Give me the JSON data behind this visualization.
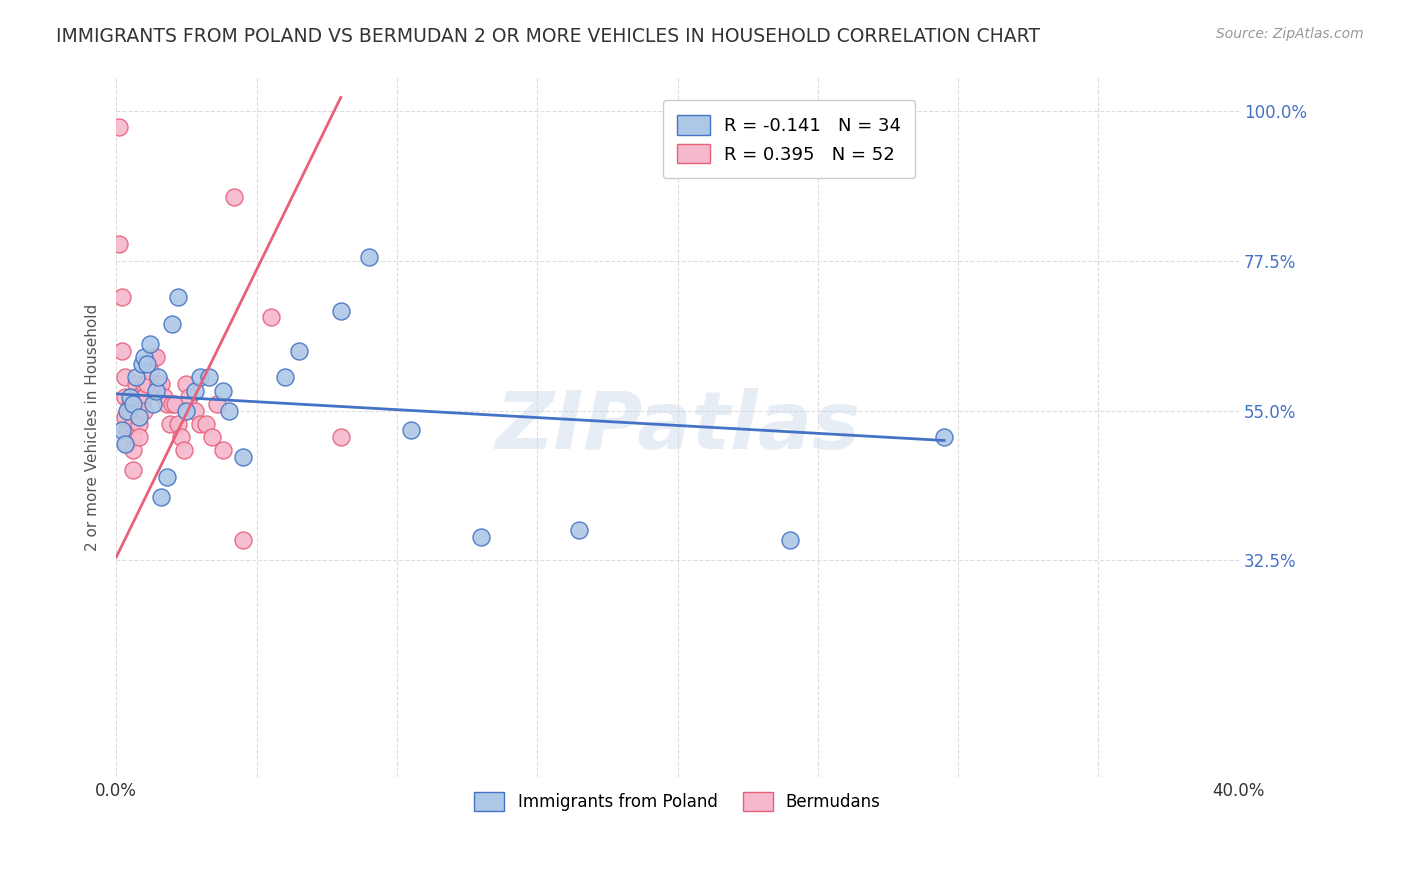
{
  "title": "IMMIGRANTS FROM POLAND VS BERMUDAN 2 OR MORE VEHICLES IN HOUSEHOLD CORRELATION CHART",
  "source": "Source: ZipAtlas.com",
  "ylabel": "2 or more Vehicles in Household",
  "xlim": [
    0.0,
    0.4
  ],
  "ylim": [
    0.0,
    1.05
  ],
  "xtick_positions": [
    0.0,
    0.05,
    0.1,
    0.15,
    0.2,
    0.25,
    0.3,
    0.35,
    0.4
  ],
  "xticklabels_show": {
    "0.0": "0.0%",
    "0.40": "40.0%"
  },
  "ytick_positions": [
    0.0,
    0.325,
    0.55,
    0.775,
    1.0
  ],
  "yticklabels": [
    "",
    "32.5%",
    "55.0%",
    "77.5%",
    "100.0%"
  ],
  "poland_color": "#adc8e6",
  "bermuda_color": "#f5b8cc",
  "poland_line_color": "#4472c4",
  "bermuda_line_color": "#e8607a",
  "watermark": "ZIPatlas",
  "legend_r_poland": "R = -0.141",
  "legend_n_poland": "N = 34",
  "legend_r_bermuda": "R = 0.395",
  "legend_n_bermuda": "N = 52",
  "poland_scatter_x": [
    0.002,
    0.003,
    0.004,
    0.005,
    0.006,
    0.007,
    0.008,
    0.009,
    0.01,
    0.011,
    0.012,
    0.013,
    0.014,
    0.015,
    0.016,
    0.018,
    0.02,
    0.022,
    0.025,
    0.028,
    0.03,
    0.033,
    0.038,
    0.04,
    0.045,
    0.06,
    0.065,
    0.08,
    0.09,
    0.105,
    0.13,
    0.165,
    0.24,
    0.295
  ],
  "poland_scatter_y": [
    0.52,
    0.5,
    0.55,
    0.57,
    0.56,
    0.6,
    0.54,
    0.62,
    0.63,
    0.62,
    0.65,
    0.56,
    0.58,
    0.6,
    0.42,
    0.45,
    0.68,
    0.72,
    0.55,
    0.58,
    0.6,
    0.6,
    0.58,
    0.55,
    0.48,
    0.6,
    0.64,
    0.7,
    0.78,
    0.52,
    0.36,
    0.37,
    0.355,
    0.51
  ],
  "bermuda_scatter_x": [
    0.001,
    0.001,
    0.002,
    0.002,
    0.003,
    0.003,
    0.003,
    0.004,
    0.004,
    0.005,
    0.005,
    0.005,
    0.006,
    0.006,
    0.006,
    0.006,
    0.007,
    0.007,
    0.007,
    0.008,
    0.008,
    0.008,
    0.009,
    0.01,
    0.01,
    0.01,
    0.011,
    0.012,
    0.013,
    0.014,
    0.015,
    0.016,
    0.017,
    0.018,
    0.019,
    0.02,
    0.021,
    0.022,
    0.023,
    0.024,
    0.025,
    0.026,
    0.028,
    0.03,
    0.032,
    0.034,
    0.036,
    0.038,
    0.042,
    0.045,
    0.055,
    0.08
  ],
  "bermuda_scatter_y": [
    0.975,
    0.8,
    0.72,
    0.64,
    0.6,
    0.57,
    0.54,
    0.52,
    0.5,
    0.56,
    0.55,
    0.52,
    0.53,
    0.51,
    0.49,
    0.46,
    0.59,
    0.57,
    0.55,
    0.56,
    0.53,
    0.51,
    0.56,
    0.59,
    0.57,
    0.55,
    0.59,
    0.61,
    0.63,
    0.63,
    0.59,
    0.59,
    0.57,
    0.56,
    0.53,
    0.56,
    0.56,
    0.53,
    0.51,
    0.49,
    0.59,
    0.57,
    0.55,
    0.53,
    0.53,
    0.51,
    0.56,
    0.49,
    0.87,
    0.355,
    0.69,
    0.51
  ],
  "poland_trend_x": [
    0.0,
    0.295
  ],
  "poland_trend_y": [
    0.575,
    0.505
  ],
  "bermuda_trend_x": [
    0.0,
    0.08
  ],
  "bermuda_trend_y": [
    0.33,
    1.02
  ],
  "background_color": "#ffffff",
  "grid_color": "#dddddd",
  "title_color": "#333333",
  "axis_label_color": "#555555",
  "right_tick_color": "#4472c4"
}
